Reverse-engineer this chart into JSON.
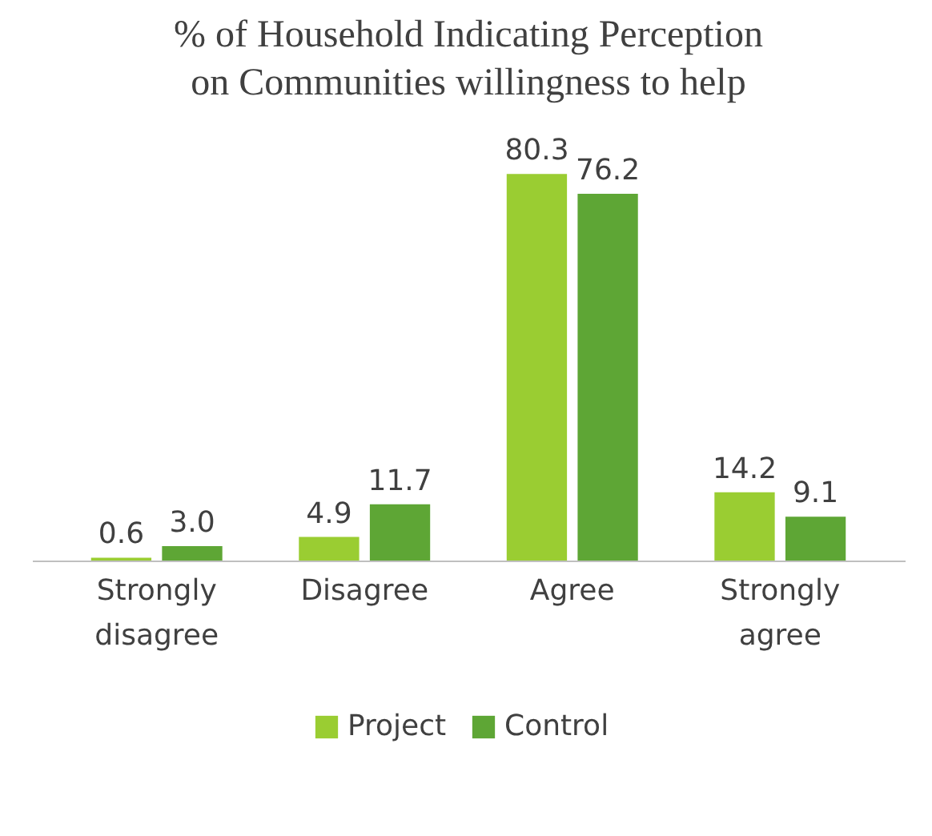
{
  "chart_data": {
    "type": "bar",
    "title": "% of Household Indicating Perception on Communities willingness to help",
    "categories": [
      "Strongly disagree",
      "Disagree",
      "Agree",
      "Strongly agree"
    ],
    "series": [
      {
        "name": "Project",
        "color": "#9acd32",
        "values": [
          0.6,
          4.9,
          80.3,
          14.2
        ],
        "value_labels": [
          "0.6",
          "4.9",
          "80.3",
          "14.2"
        ]
      },
      {
        "name": "Control",
        "color": "#5ea635",
        "values": [
          3.0,
          11.7,
          76.2,
          9.1
        ],
        "value_labels": [
          "3.0",
          "11.7",
          "76.2",
          "9.1"
        ]
      }
    ],
    "legend": "bottom",
    "grid": false
  }
}
